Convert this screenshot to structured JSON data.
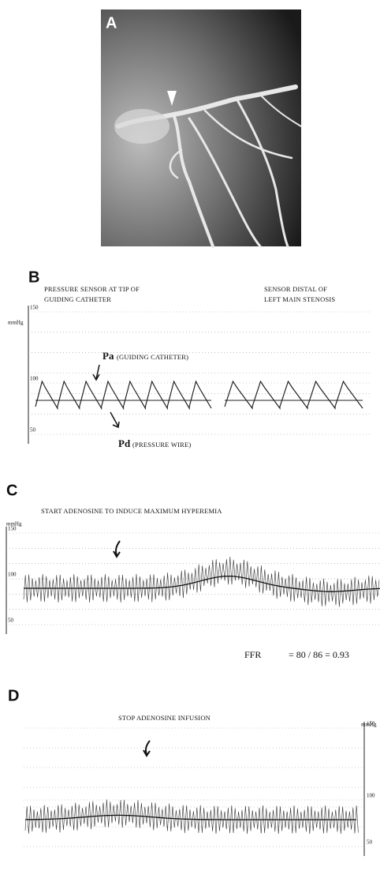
{
  "panel_a": {
    "label": "A"
  },
  "panel_b": {
    "label": "B",
    "left_caption": [
      "PRESSURE SENSOR AT TIP OF",
      "GUIDING CATHETER"
    ],
    "right_caption": [
      "SENSOR DISTAL OF",
      "LEFT MAIN STENOSIS"
    ],
    "unit": "mmHg",
    "ticks": [
      150,
      100,
      50
    ],
    "pa_label": "Pa",
    "pa_note": "(GUIDING CATHETER)",
    "pd_label": "Pd",
    "pd_note": "(PRESSURE WIRE)"
  },
  "panel_c": {
    "label": "C",
    "caption": "START ADENOSINE TO INDUCE  MAXIMUM HYPEREMIA",
    "unit": "mmHg",
    "ticks": [
      150,
      100,
      50
    ],
    "ffr_label": "FFR",
    "ffr_value": "= 80 / 86 = 0.93"
  },
  "panel_d": {
    "label": "D",
    "caption": "STOP ADENOSINE INFUSION",
    "unit": "mmHg",
    "ticks": [
      150,
      100,
      50
    ]
  }
}
